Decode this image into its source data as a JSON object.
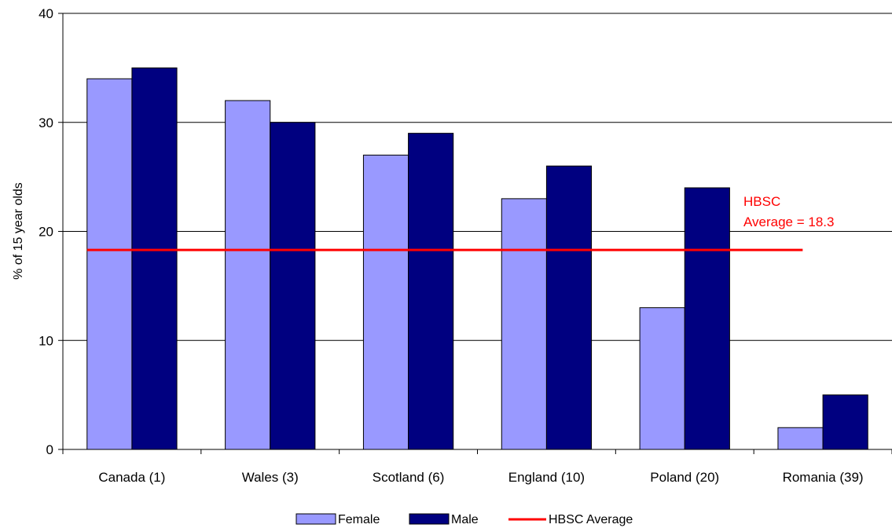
{
  "chart_data": {
    "type": "bar",
    "categories": [
      "Canada (1)",
      "Wales (3)",
      "Scotland (6)",
      "England (10)",
      "Poland (20)",
      "Romania (39)"
    ],
    "series": [
      {
        "name": "Female",
        "values": [
          34,
          32,
          27,
          23,
          13,
          2
        ],
        "color": "#9999ff"
      },
      {
        "name": "Male",
        "values": [
          35,
          30,
          29,
          26,
          24,
          5
        ],
        "color": "#000080"
      }
    ],
    "reference_line": {
      "name": "HBSC Average",
      "value": 18.3,
      "color": "#ff0000",
      "annotation_line1": "HBSC",
      "annotation_line2": "Average = 18.3"
    },
    "title": "",
    "xlabel": "",
    "ylabel": "% of 15 year olds",
    "ylim": [
      0,
      40
    ],
    "yticks": [
      0,
      10,
      20,
      30,
      40
    ],
    "grid": true,
    "legend_placement": "bottom"
  }
}
